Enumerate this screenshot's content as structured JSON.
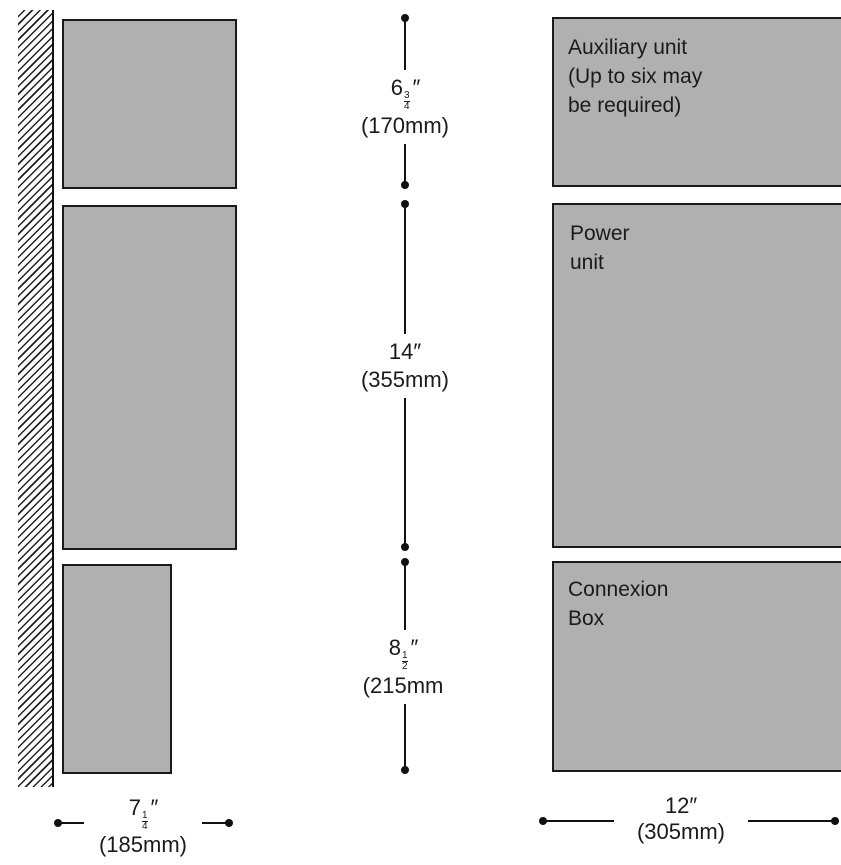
{
  "right_boxes": {
    "auxiliary": {
      "line1": "Auxiliary unit",
      "line2": "(Up to six may",
      "line3": "be required)"
    },
    "power": {
      "line1": "Power",
      "line2": "unit"
    },
    "connexion": {
      "line1": "Connexion",
      "line2": "Box"
    }
  },
  "dimensions": {
    "aux": {
      "whole": "6",
      "num": "3",
      "den": "4",
      "inch": "″",
      "metric": "(170mm)"
    },
    "power": {
      "imperial": "14″",
      "metric": "(355mm)"
    },
    "connexion": {
      "whole": "8",
      "num": "1",
      "den": "2",
      "inch": "″",
      "metric": "(215mm"
    },
    "left_width": {
      "whole": "7",
      "num": "1",
      "den": "4",
      "inch": "″",
      "metric": "(185mm)"
    },
    "right_width": {
      "imperial": "12″",
      "metric": "(305mm)"
    }
  }
}
